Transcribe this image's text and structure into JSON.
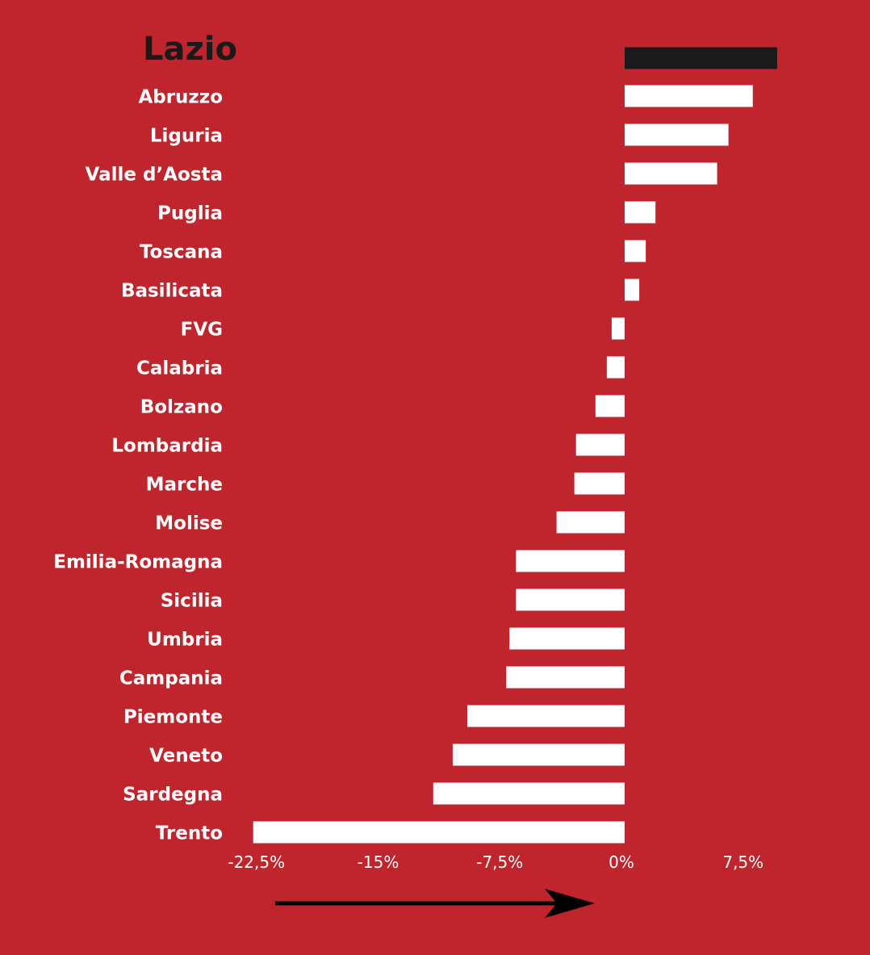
{
  "chart_data": {
    "type": "bar",
    "orientation": "horizontal",
    "categories": [
      "Lazio",
      "Abruzzo",
      "Liguria",
      "Valle d’Aosta",
      "Puglia",
      "Toscana",
      "Basilicata",
      "FVG",
      "Calabria",
      "Bolzano",
      "Lombardia",
      "Marche",
      "Molise",
      "Emilia-Romagna",
      "Sicilia",
      "Umbria",
      "Campania",
      "Piemonte",
      "Veneto",
      "Sardegna",
      "Trento"
    ],
    "values": [
      9.4,
      7.9,
      6.4,
      5.7,
      1.9,
      1.3,
      0.9,
      -0.8,
      -1.1,
      -1.8,
      -3.0,
      -3.1,
      -4.2,
      -6.7,
      -6.7,
      -7.1,
      -7.3,
      -9.7,
      -10.6,
      -11.8,
      -22.9
    ],
    "highlight": "Lazio",
    "xticks": [
      -22.5,
      -15,
      -7.5,
      0,
      7.5
    ],
    "xtick_labels": [
      "-22,5%",
      "-15%",
      "-7,5%",
      "0%",
      "7,5%"
    ],
    "xlim": [
      -22.5,
      7.5
    ],
    "grid": false,
    "colors": {
      "background": "#c0242c",
      "bar": "#ffffff",
      "highlight_bar": "#1a1a1a",
      "highlight_label": "#1a1a1a",
      "text": "#ffffff",
      "arrow": "#000000"
    },
    "arrow_direction": "right"
  }
}
